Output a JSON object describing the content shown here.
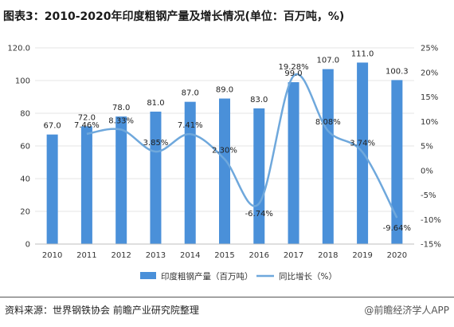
{
  "title": "图表3：2010-2020年印度粗钢产量及增长情况(单位：百万吨，%)",
  "footer": {
    "source": "资料来源：世界钢铁协会 前瞻产业研究院整理",
    "brand": "@前瞻经济学人APP"
  },
  "colors": {
    "bar": "#4a90d9",
    "line": "#6fa8dc",
    "grid": "#e6e6e6"
  },
  "chart_data": {
    "type": "bar",
    "categories": [
      "2010",
      "2011",
      "2012",
      "2013",
      "2014",
      "2015",
      "2016",
      "2017",
      "2018",
      "2019",
      "2020"
    ],
    "series": [
      {
        "name": "印度粗钢产量（百万吨）",
        "type": "bar",
        "axis": "left",
        "values": [
          67.0,
          72.0,
          78.0,
          81.0,
          87.0,
          89.0,
          83.0,
          99.0,
          107.0,
          111.0,
          100.3
        ],
        "labels": [
          "67.0",
          "72.0",
          "78.0",
          "81.0",
          "87.0",
          "89.0",
          "83.0",
          "99.0",
          "107.0",
          "111.0",
          "100.3"
        ]
      },
      {
        "name": "同比增长（%）",
        "type": "line",
        "axis": "right",
        "values": [
          null,
          7.46,
          8.33,
          3.85,
          7.41,
          2.3,
          -6.74,
          19.28,
          8.08,
          3.74,
          -9.64
        ],
        "labels": [
          "",
          "7.46%",
          "8.33%",
          "3.85%",
          "7.41%",
          "2.30%",
          "-6.74%",
          "19.28%",
          "8.08%",
          "3.74%",
          "-9.64%"
        ]
      }
    ],
    "y_left": {
      "lim": [
        0,
        120
      ],
      "ticks": [
        0,
        20,
        40,
        60,
        80,
        100,
        120
      ],
      "tick_labels": [
        "0",
        "20",
        "40",
        "60",
        "80",
        "100",
        "120.0"
      ]
    },
    "y_right": {
      "lim": [
        -15,
        25
      ],
      "ticks": [
        -15,
        -10,
        -5,
        0,
        5,
        10,
        15,
        20,
        25
      ],
      "tick_labels": [
        "-15%",
        "-10%",
        "-5%",
        "0%",
        "5%",
        "10%",
        "15%",
        "20%",
        "25%"
      ]
    },
    "legend_position": "bottom"
  }
}
